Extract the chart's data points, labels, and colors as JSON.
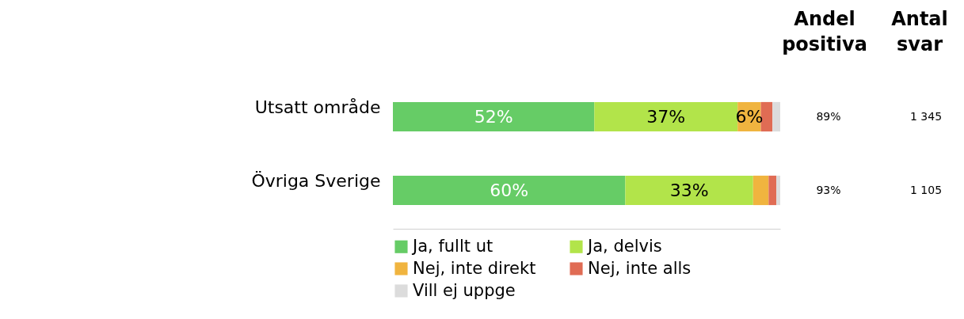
{
  "chart_data": {
    "type": "bar",
    "orientation": "horizontal",
    "stacked": true,
    "categories": [
      "Utsatt område",
      "Övriga Sverige"
    ],
    "series": [
      {
        "name": "Ja, fullt ut",
        "color": "#66cc66",
        "values": [
          52,
          60
        ],
        "value_labels": [
          "52%",
          "60%"
        ]
      },
      {
        "name": "Ja, delvis",
        "color": "#b2e44a",
        "values": [
          37,
          33
        ],
        "value_labels": [
          "37%",
          "33%"
        ]
      },
      {
        "name": "Nej, inte direkt",
        "color": "#f0b43f",
        "values": [
          6,
          4
        ],
        "value_labels": [
          "6%",
          null
        ]
      },
      {
        "name": "Nej, inte alls",
        "color": "#e06c54",
        "values": [
          3,
          2
        ],
        "value_labels": [
          null,
          null
        ]
      },
      {
        "name": "Vill ej uppge",
        "color": "#dcdcdc",
        "values": [
          2,
          1
        ],
        "value_labels": [
          null,
          null
        ]
      }
    ],
    "xlim": [
      0,
      100
    ],
    "tick_labels": "y",
    "legend": "bottom",
    "annotations": [
      "Andel positiva",
      "Antal svar",
      "89%",
      "1 345",
      "93%",
      "1 105"
    ]
  }
}
